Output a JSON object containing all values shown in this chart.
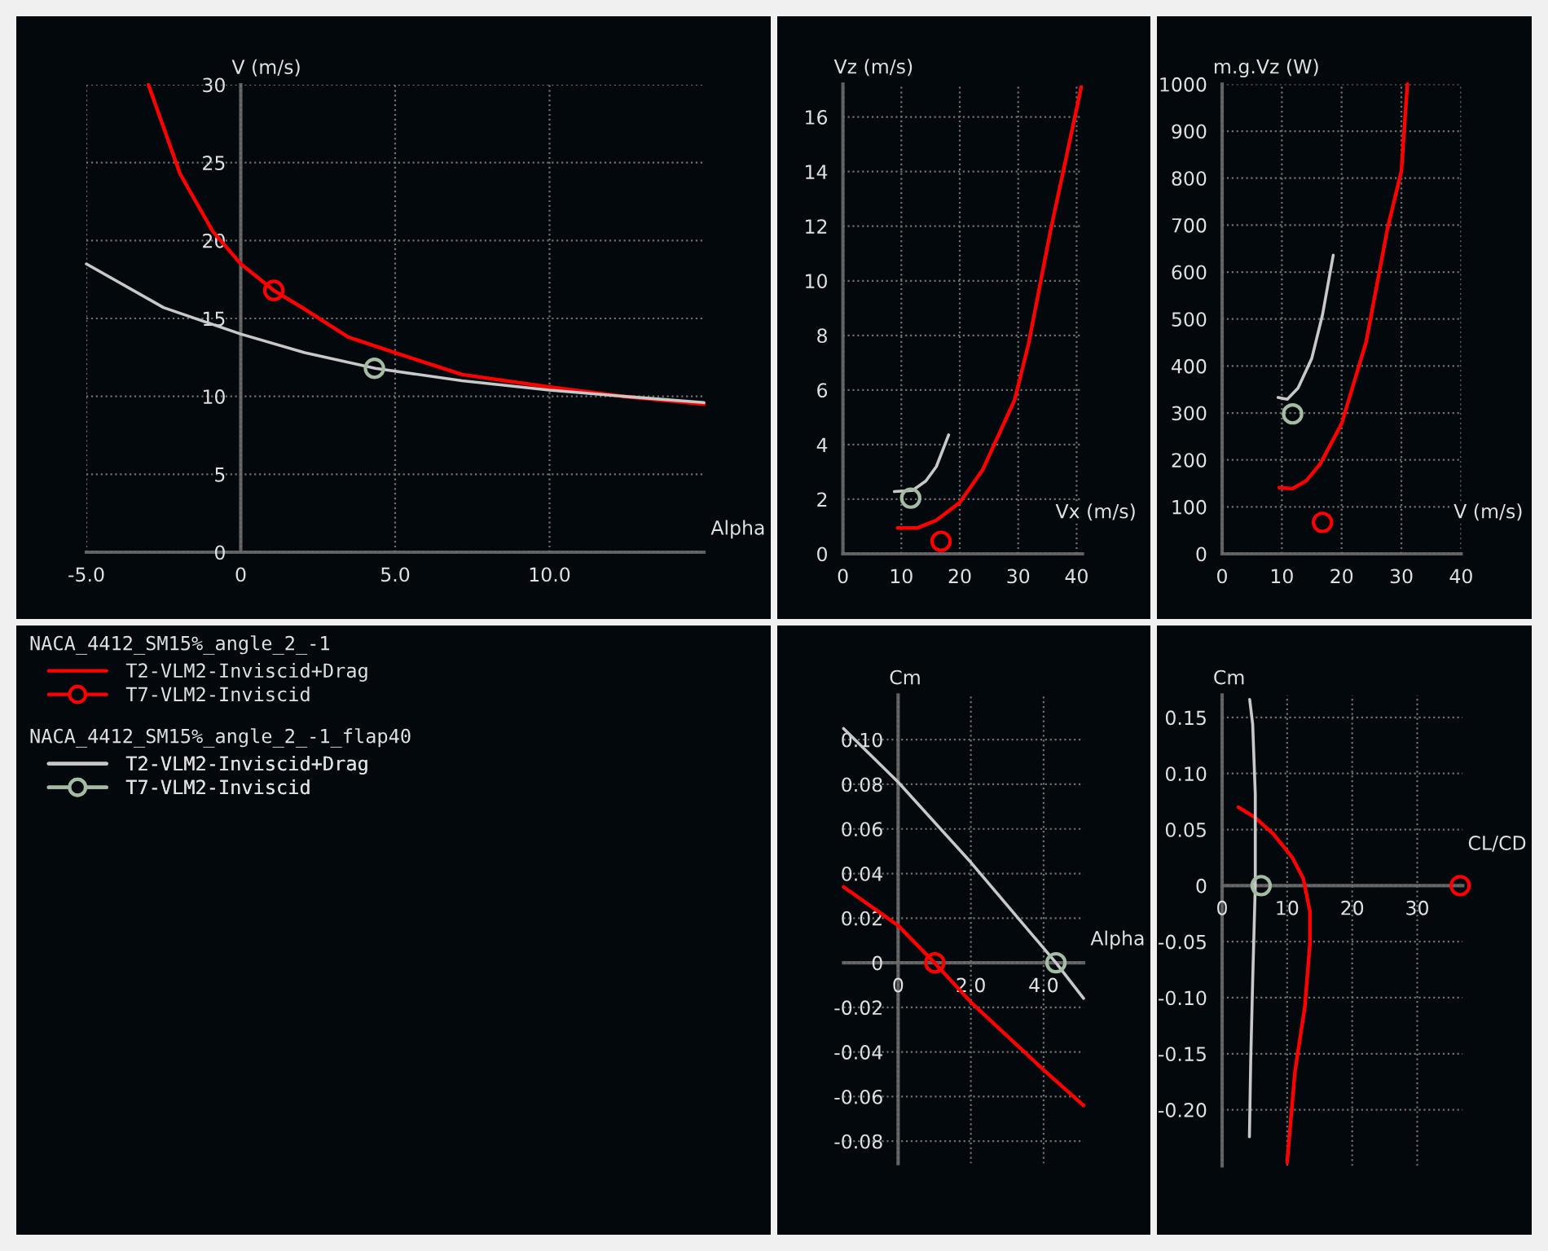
{
  "chart_data": [
    {
      "type": "line",
      "xlabel": "Alpha",
      "ylabel": "V (m/s)",
      "xlim": [
        -5,
        15
      ],
      "ylim": [
        0,
        30
      ],
      "xticks": [
        {
          "value": -5,
          "label": "-5.0"
        },
        0,
        {
          "value": 5,
          "label": "5.0"
        },
        {
          "value": 10,
          "label": "10.0"
        }
      ],
      "yticks": [
        0,
        5,
        10,
        15,
        20,
        25,
        30
      ],
      "grid": true,
      "legend": "bottom",
      "annotations": [
        "NACA_4412_SM15%_angle_2_-1",
        "NACA_4412_SM15%_angle_2_-1_flap40"
      ],
      "series": [
        {
          "name": "T2-VLM2-Inviscid+Drag",
          "color": "#ff0000",
          "x": [
            -2.99,
            -1.97,
            -0.91,
            0,
            1.07,
            2.07,
            3.48,
            5.0,
            7.17,
            10.0,
            12.4,
            15.0
          ],
          "values": [
            30,
            24.3,
            20.6,
            18.5,
            16.8,
            15.6,
            13.8,
            12.8,
            11.4,
            10.6,
            10.0,
            9.5
          ]
        },
        {
          "name": "T7-VLM2-Inviscid",
          "type": "scatter",
          "marker": "circle",
          "color": "#ff0000",
          "x": [
            1.07
          ],
          "values": [
            16.8
          ]
        },
        {
          "name": "T2-VLM2-Inviscid+Drag",
          "color": "#c8c8c8",
          "x": [
            -5,
            -2.5,
            0,
            2.07,
            4.36,
            7.17,
            10,
            12.4,
            15
          ],
          "values": [
            18.5,
            15.7,
            14.0,
            12.8,
            11.8,
            11.0,
            10.4,
            10.0,
            9.6
          ]
        },
        {
          "name": "T7-VLM2-Inviscid",
          "type": "scatter",
          "marker": "circle",
          "color": "#a3bca3",
          "x": [
            4.33
          ],
          "values": [
            11.8
          ]
        }
      ]
    },
    {
      "type": "line",
      "xlabel": "Vx (m/s)",
      "ylabel": "Vz (m/s)",
      "xlim": [
        0,
        41
      ],
      "ylim": [
        0,
        17.2
      ],
      "xticks": [
        0,
        10,
        20,
        30,
        40
      ],
      "yticks": [
        0,
        2,
        4,
        6,
        8,
        10,
        12,
        14,
        16
      ],
      "grid": true,
      "series": [
        {
          "color": "#ff0000",
          "x": [
            9.35,
            12.8,
            16,
            20,
            23.9,
            29.4,
            31.8,
            35.5,
            38.2,
            40.8
          ],
          "values": [
            0.95,
            0.95,
            1.23,
            1.88,
            3.07,
            5.64,
            7.72,
            11.8,
            14.5,
            17.1
          ]
        },
        {
          "type": "scatter",
          "marker": "circle",
          "color": "#ff0000",
          "x": [
            16.8
          ],
          "values": [
            0.46
          ]
        },
        {
          "color": "#c8c8c8",
          "x": [
            8.8,
            11.9,
            14.2,
            16.0,
            18.1
          ],
          "values": [
            2.28,
            2.32,
            2.67,
            3.2,
            4.36
          ]
        },
        {
          "type": "scatter",
          "marker": "circle",
          "color": "#a3bca3",
          "x": [
            11.6
          ],
          "values": [
            2.04
          ]
        }
      ]
    },
    {
      "type": "line",
      "xlabel": "V (m/s)",
      "ylabel": "m.g.Vz (W)",
      "xlim": [
        0,
        40
      ],
      "ylim": [
        0,
        1000
      ],
      "xticks": [
        0,
        10,
        20,
        30,
        40
      ],
      "yticks": [
        0,
        100,
        200,
        300,
        400,
        500,
        600,
        700,
        800,
        900,
        1000
      ],
      "grid": true,
      "series": [
        {
          "color": "#ff0000",
          "x": [
            9.55,
            11.8,
            14.1,
            16.4,
            20,
            24.1,
            27.7,
            30,
            31.0
          ],
          "values": [
            141,
            139,
            156,
            191,
            277,
            451,
            694,
            815,
            1000
          ]
        },
        {
          "type": "scatter",
          "marker": "circle",
          "color": "#ff0000",
          "x": [
            16.8
          ],
          "values": [
            67
          ]
        },
        {
          "color": "#c8c8c8",
          "x": [
            9.36,
            10.9,
            12.7,
            15,
            16.8,
            18.6
          ],
          "values": [
            333,
            329,
            353,
            416,
            509,
            636
          ]
        },
        {
          "type": "scatter",
          "marker": "circle",
          "color": "#a3bca3",
          "x": [
            11.8
          ],
          "values": [
            298
          ]
        }
      ]
    },
    {
      "type": "line",
      "xlabel": "Alpha",
      "ylabel": "Cm",
      "xlim": [
        -1.5,
        5.1
      ],
      "ylim": [
        -0.09,
        0.12
      ],
      "xticks": [
        0,
        {
          "value": 2,
          "label": "2.0"
        },
        {
          "value": 4,
          "label": "4.0"
        }
      ],
      "yticks": [
        -0.08,
        -0.06,
        -0.04,
        -0.02,
        0,
        0.02,
        0.04,
        0.06,
        0.08,
        {
          "value": 0.1,
          "label": "0.10"
        }
      ],
      "grid": true,
      "series": [
        {
          "color": "#ff0000",
          "x": [
            -1.5,
            0,
            1.0,
            2.0,
            4.0,
            5.1
          ],
          "values": [
            0.034,
            0.0167,
            0,
            -0.0177,
            -0.048,
            -0.064
          ]
        },
        {
          "type": "scatter",
          "marker": "circle",
          "color": "#ff0000",
          "x": [
            1.01
          ],
          "values": [
            0
          ]
        },
        {
          "color": "#c8c8c8",
          "x": [
            -1.5,
            0,
            2.0,
            4.34,
            5.1
          ],
          "values": [
            0.105,
            0.081,
            0.045,
            0,
            -0.016
          ]
        },
        {
          "type": "scatter",
          "marker": "circle",
          "color": "#a3bca3",
          "x": [
            4.34
          ],
          "values": [
            0
          ]
        }
      ]
    },
    {
      "type": "line",
      "xlabel": "CL/CD",
      "ylabel": "Cm",
      "xlim": [
        0,
        37
      ],
      "ylim": [
        -0.25,
        0.17
      ],
      "xticks": [
        0,
        10,
        20,
        30
      ],
      "yticks": [
        {
          "value": -0.2,
          "label": "-0.20"
        },
        -0.15,
        {
          "value": -0.1,
          "label": "-0.10"
        },
        -0.05,
        0,
        0.05,
        {
          "value": 0.1,
          "label": "0.10"
        },
        0.15
      ],
      "grid": true,
      "series": [
        {
          "color": "#ff0000",
          "x": [
            2.5,
            5.0,
            7.9,
            10.8,
            12.5,
            13.5,
            13.5,
            12.7,
            11.2,
            10
          ],
          "values": [
            0.07,
            0.061,
            0.046,
            0.025,
            0.006,
            -0.023,
            -0.052,
            -0.109,
            -0.166,
            -0.247
          ]
        },
        {
          "type": "scatter",
          "marker": "circle",
          "color": "#ff0000",
          "x": [
            36.6
          ],
          "values": [
            0
          ]
        },
        {
          "color": "#c8c8c8",
          "x": [
            4.24,
            4.7,
            5.1,
            5.1,
            4.7,
            4.4,
            4.2
          ],
          "values": [
            0.166,
            0.144,
            0.082,
            0,
            -0.085,
            -0.156,
            -0.224
          ]
        },
        {
          "type": "scatter",
          "marker": "circle",
          "color": "#a3bca3",
          "x": [
            6.0
          ],
          "values": [
            0
          ]
        }
      ]
    }
  ]
}
